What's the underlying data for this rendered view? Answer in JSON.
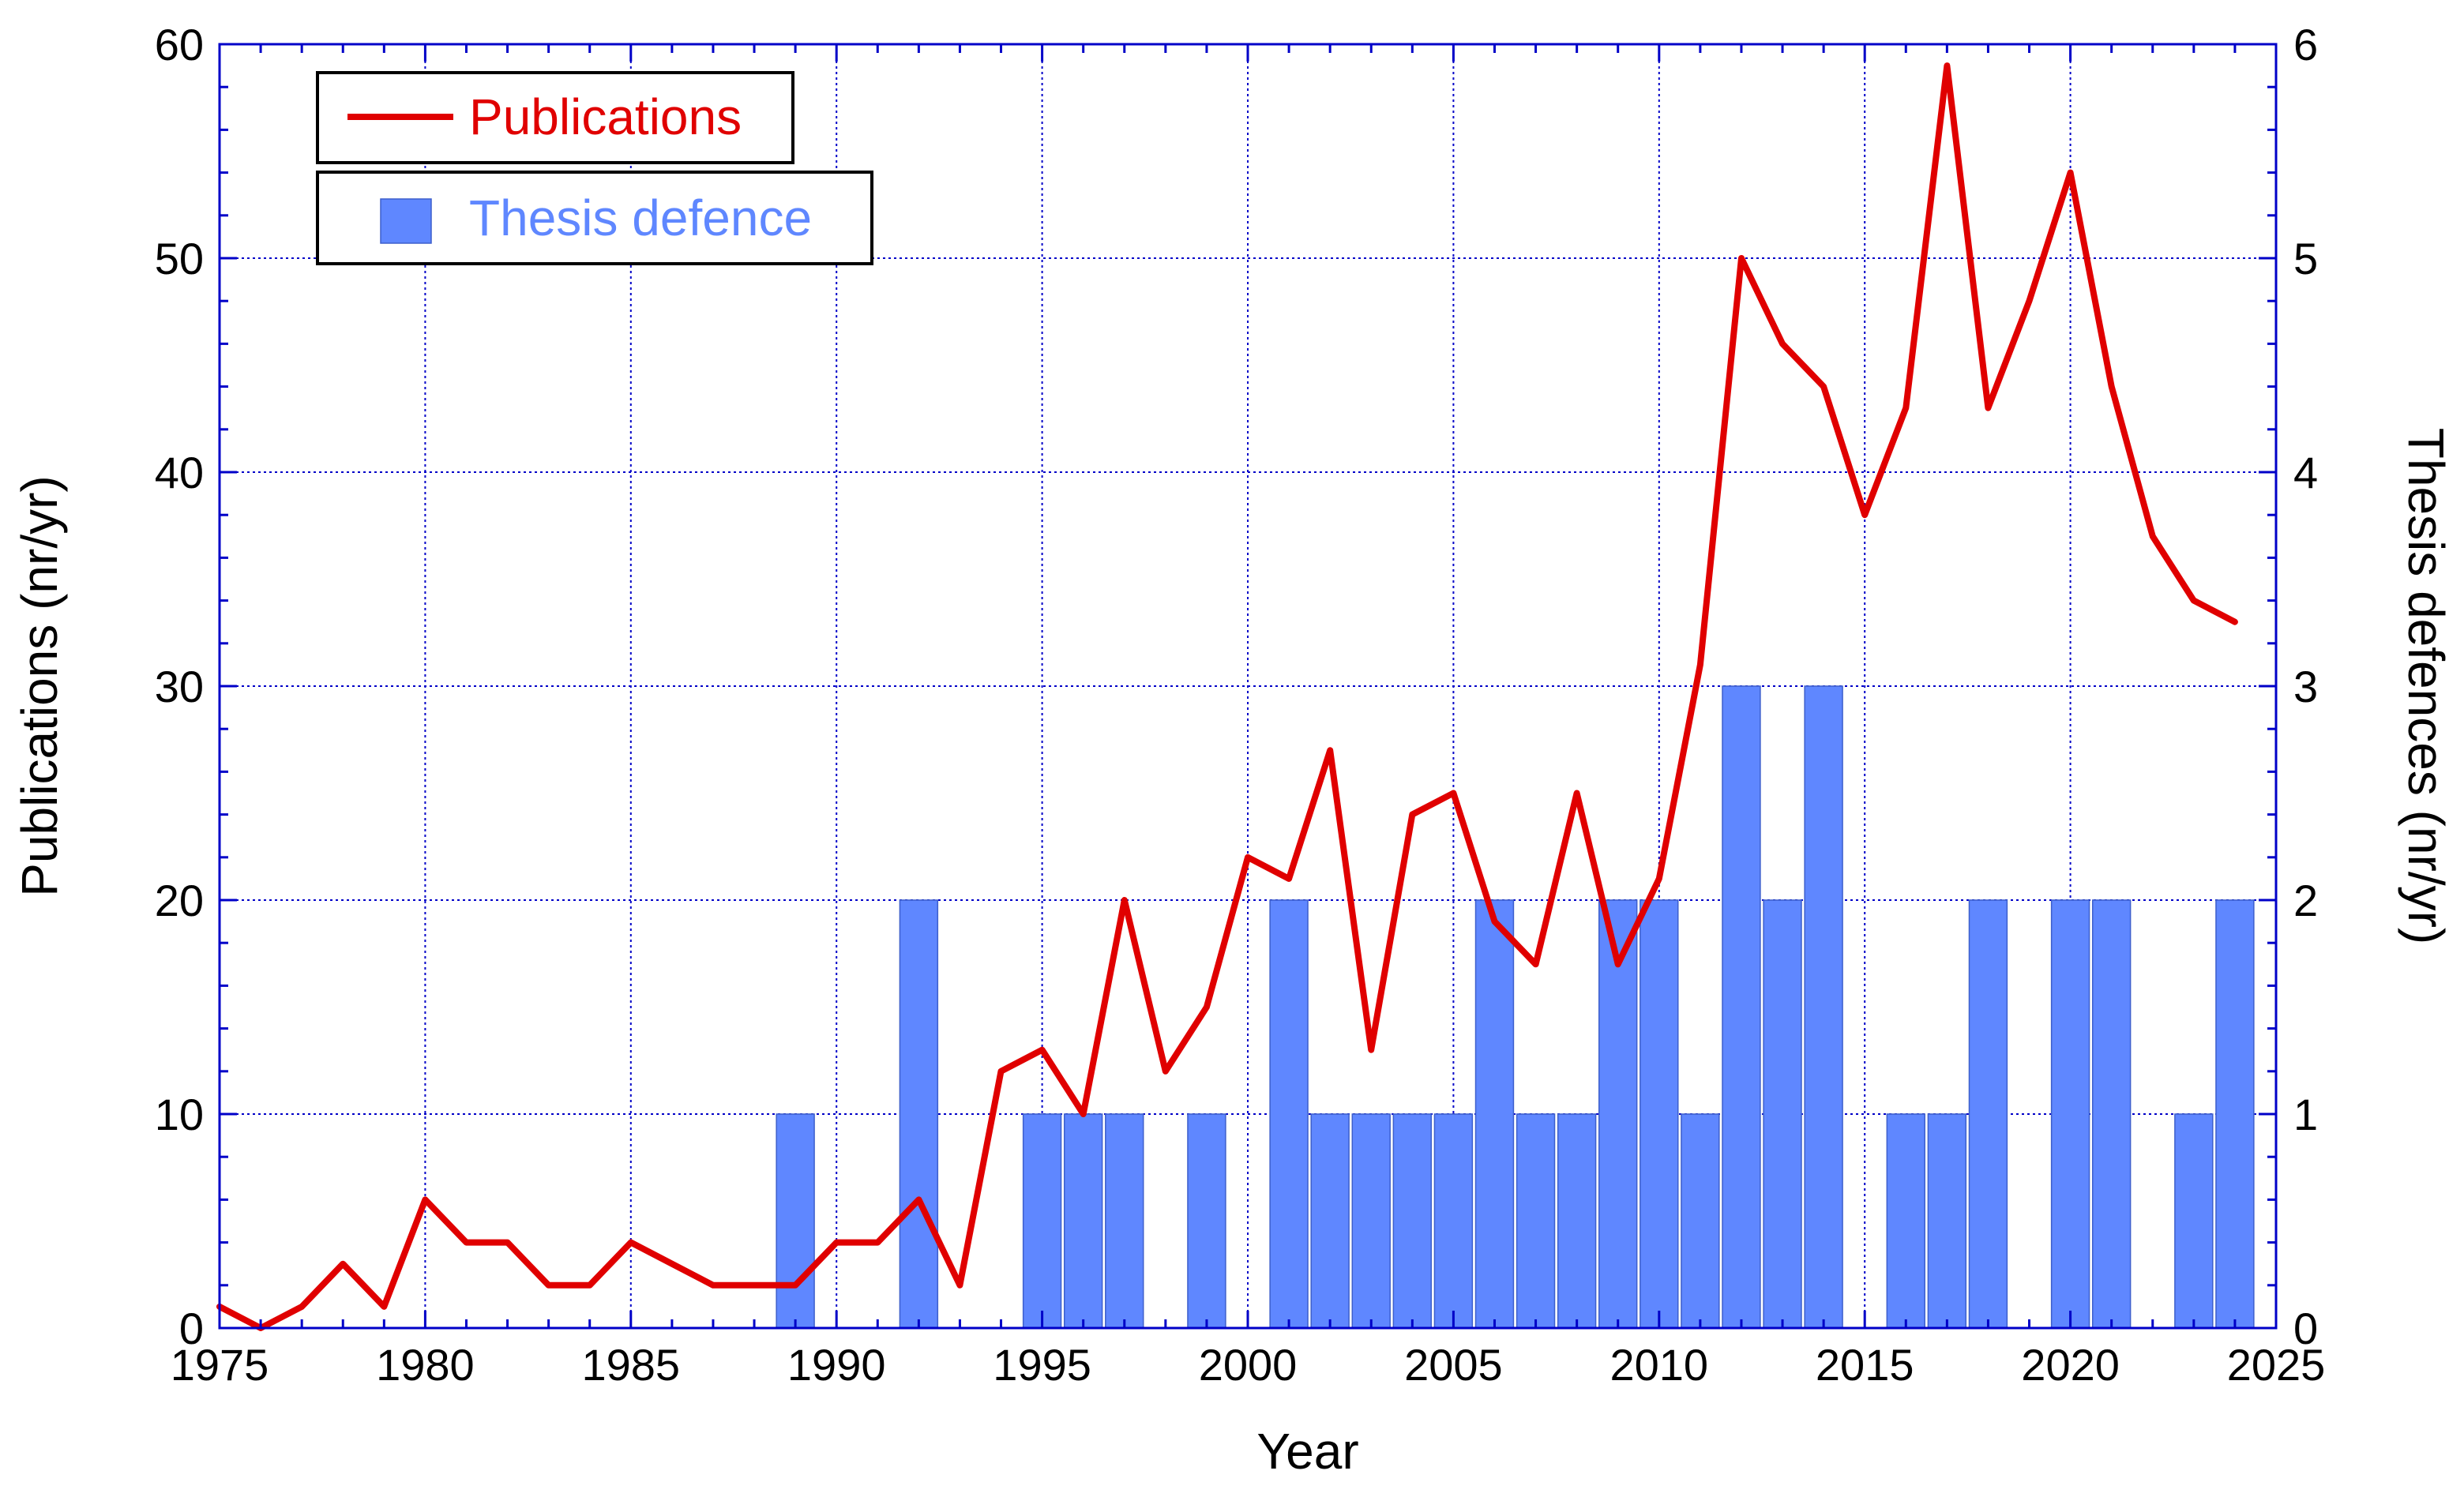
{
  "chart_data": {
    "type": "bar",
    "xlabel": "Year",
    "ylabel": "Publications (nr/yr)",
    "ylabel_right": "Thesis defences (nr/yr)",
    "xlim": [
      1975,
      2025
    ],
    "ylim": [
      0,
      60
    ],
    "ylim_right": [
      0,
      6
    ],
    "x_ticks": [
      1975,
      1980,
      1985,
      1990,
      1995,
      2000,
      2005,
      2010,
      2015,
      2020,
      2025
    ],
    "y_ticks": [
      0,
      10,
      20,
      30,
      40,
      50,
      60
    ],
    "y_ticks_right": [
      0,
      1,
      2,
      3,
      4,
      5,
      6
    ],
    "grid": true,
    "legend_position": "top-left",
    "colors": {
      "publications": "#e00000",
      "thesis": "#5f87ff",
      "grid": "#0000c8",
      "axes": "#0000c8"
    },
    "series": [
      {
        "name": "Publications",
        "type": "line",
        "axis": "left",
        "x": [
          1975,
          1976,
          1977,
          1978,
          1979,
          1980,
          1981,
          1982,
          1983,
          1984,
          1985,
          1986,
          1987,
          1988,
          1989,
          1990,
          1991,
          1992,
          1993,
          1994,
          1995,
          1996,
          1997,
          1998,
          1999,
          2000,
          2001,
          2002,
          2003,
          2004,
          2005,
          2006,
          2007,
          2008,
          2009,
          2010,
          2011,
          2012,
          2013,
          2014,
          2015,
          2016,
          2017,
          2018,
          2019,
          2020,
          2021,
          2022,
          2023,
          2024
        ],
        "values": [
          1,
          0,
          1,
          3,
          1,
          6,
          4,
          4,
          2,
          2,
          4,
          3,
          2,
          2,
          2,
          4,
          4,
          6,
          2,
          12,
          13,
          10,
          20,
          12,
          15,
          22,
          21,
          27,
          13,
          24,
          25,
          19,
          17,
          25,
          17,
          21,
          31,
          50,
          46,
          44,
          38,
          43,
          59,
          43,
          48,
          54,
          44,
          37,
          34,
          33
        ]
      },
      {
        "name": "Thesis defence",
        "type": "bar",
        "axis": "right",
        "x": [
          1989,
          1992,
          1995,
          1996,
          1997,
          1999,
          2001,
          2002,
          2003,
          2004,
          2005,
          2006,
          2007,
          2008,
          2009,
          2010,
          2011,
          2012,
          2013,
          2014,
          2016,
          2017,
          2018,
          2020,
          2021,
          2023,
          2024
        ],
        "values": [
          1,
          2,
          1,
          1,
          1,
          1,
          2,
          1,
          1,
          1,
          1,
          2,
          1,
          1,
          2,
          2,
          1,
          3,
          2,
          3,
          1,
          1,
          2,
          2,
          2,
          1,
          2
        ]
      }
    ]
  }
}
